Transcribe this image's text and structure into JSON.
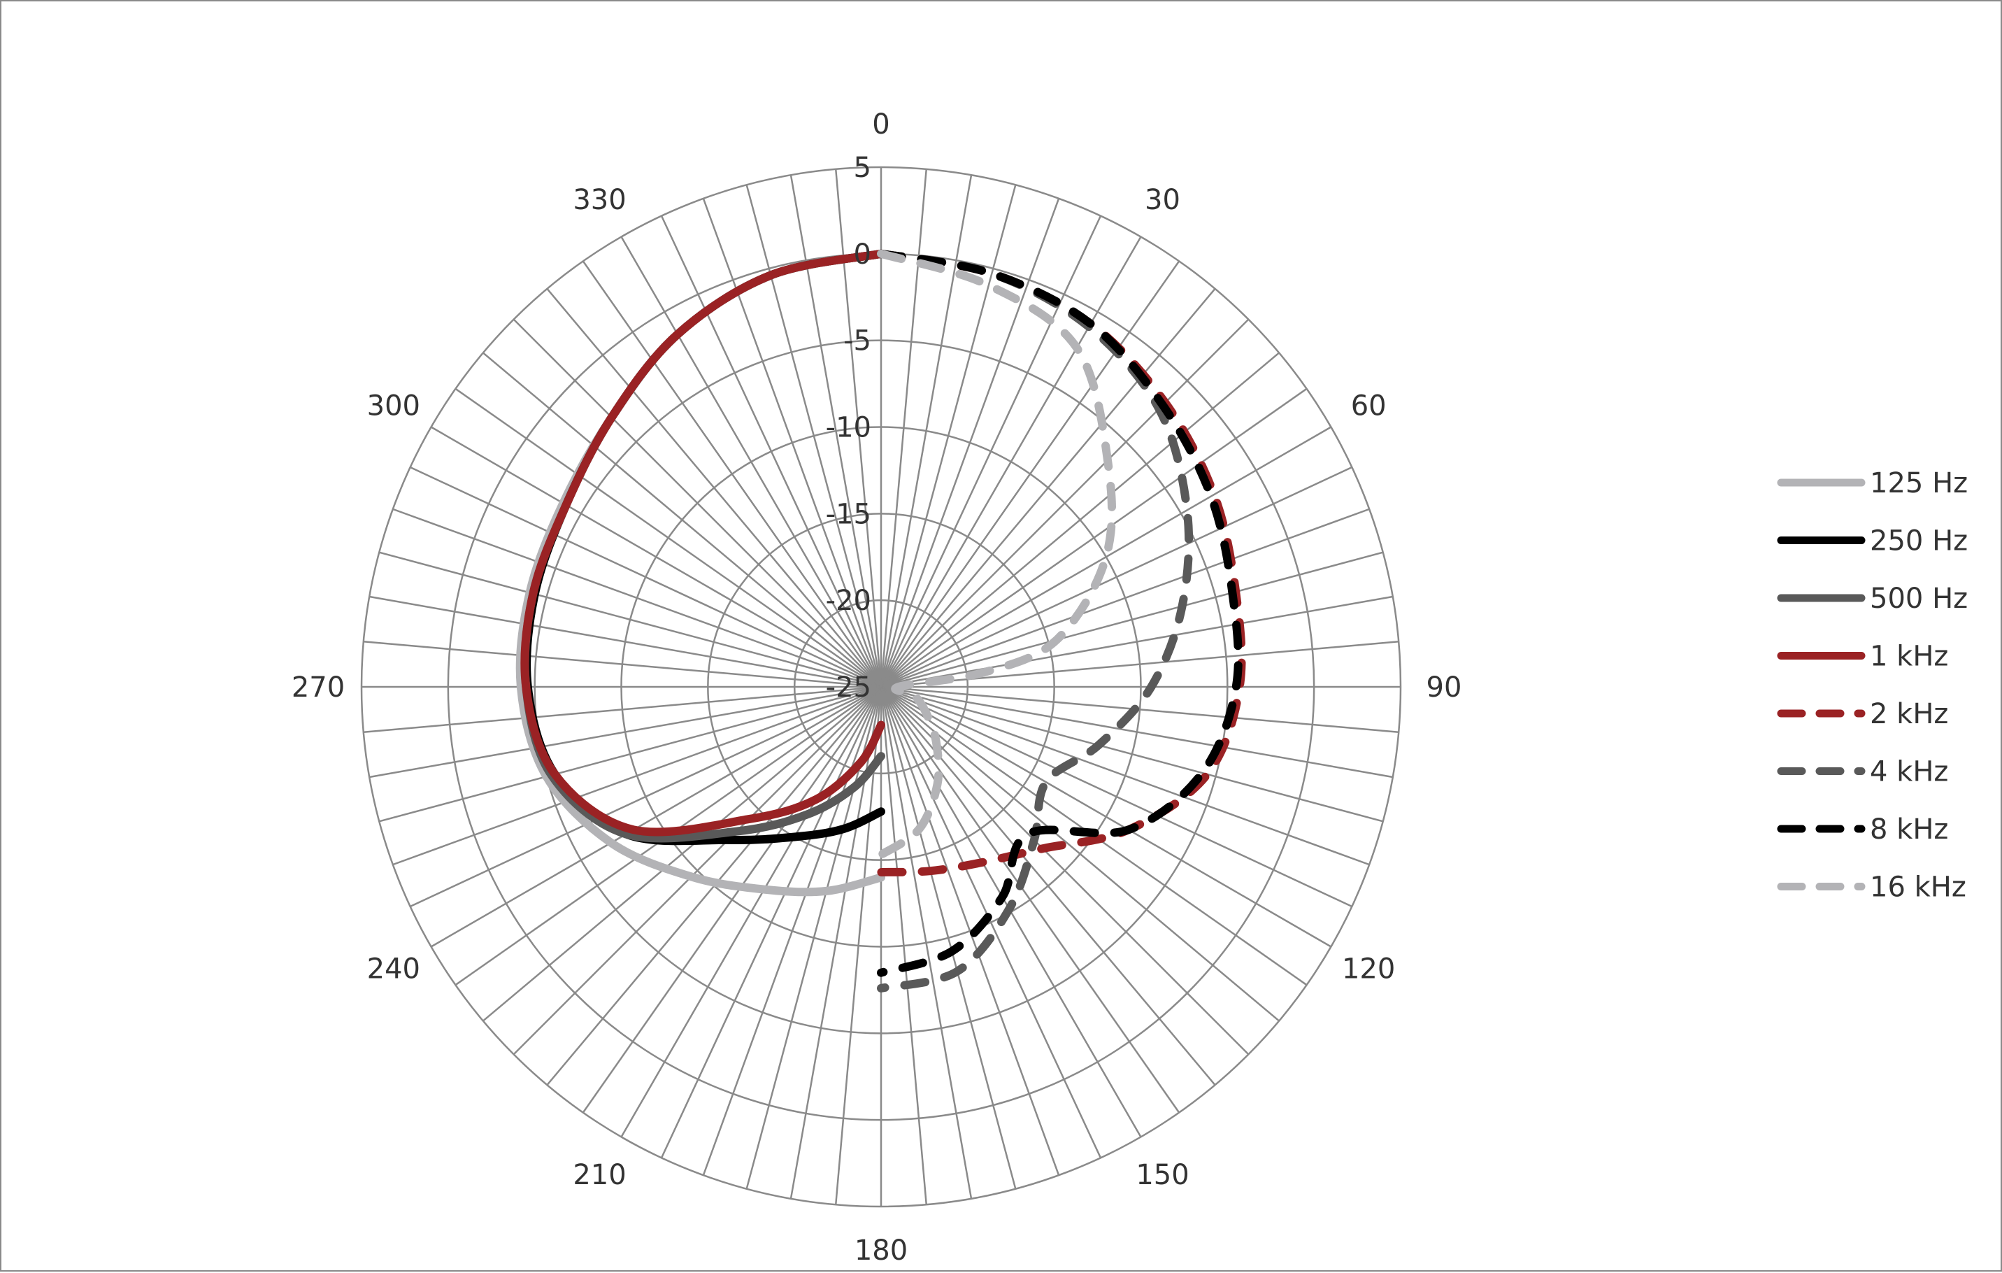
{
  "chart_data": {
    "type": "polar-line",
    "title": "",
    "radial_axis": {
      "range": [
        -25,
        5
      ],
      "ticks": [
        -25,
        -20,
        -15,
        -10,
        -5,
        0,
        5
      ],
      "tick_labels": [
        "-25",
        "-20",
        "-15",
        "-10",
        "-5",
        "0",
        "5"
      ]
    },
    "angular_axis": {
      "direction": "clockwise",
      "zero": "top",
      "spoke_step_deg": 5,
      "labels": [
        "0",
        "30",
        "60",
        "90",
        "120",
        "150",
        "180",
        "210",
        "240",
        "270",
        "300",
        "330"
      ]
    },
    "grid": true,
    "legend": {
      "position": "right"
    },
    "series": [
      {
        "name": "125 Hz",
        "color": "#b3b3b6",
        "dash": "solid",
        "angles": [
          180,
          195,
          210,
          225,
          240,
          255,
          270,
          285,
          300,
          315,
          330,
          345,
          360
        ],
        "values": [
          -14,
          -12.8,
          -11.5,
          -9.5,
          -7,
          -5,
          -4.2,
          -4,
          -3.8,
          -3,
          -1.5,
          -0.4,
          0
        ]
      },
      {
        "name": "250 Hz",
        "color": "#000000",
        "dash": "solid",
        "angles": [
          180,
          195,
          210,
          225,
          240,
          255,
          270,
          285,
          300,
          315,
          330,
          345,
          360
        ],
        "values": [
          -17.8,
          -16.5,
          -15,
          -12.5,
          -8,
          -5.5,
          -4.6,
          -4.3,
          -4,
          -3,
          -1.5,
          -0.4,
          0
        ]
      },
      {
        "name": "500 Hz",
        "color": "#595959",
        "dash": "solid",
        "angles": [
          180,
          195,
          210,
          225,
          240,
          255,
          270,
          285,
          300,
          315,
          330,
          345,
          360
        ],
        "values": [
          -21,
          -19,
          -16.5,
          -13.2,
          -8,
          -5.3,
          -4.5,
          -4.2,
          -4,
          -3,
          -1.5,
          -0.4,
          0
        ]
      },
      {
        "name": "1 kHz",
        "color": "#9a2224",
        "dash": "solid",
        "angles": [
          180,
          195,
          210,
          225,
          240,
          255,
          270,
          285,
          300,
          315,
          330,
          345,
          360
        ],
        "values": [
          -22.8,
          -20.5,
          -17.5,
          -14.2,
          -8.5,
          -5.5,
          -4.5,
          -4.2,
          -4,
          -3,
          -1.5,
          -0.4,
          0
        ]
      },
      {
        "name": "2 kHz",
        "color": "#9a2224",
        "dash": "dashed",
        "angles": [
          0,
          15,
          30,
          45,
          60,
          75,
          90,
          105,
          120,
          135,
          150,
          165,
          180
        ],
        "values": [
          0,
          -0.3,
          -0.8,
          -1.8,
          -2.8,
          -3.8,
          -4.3,
          -5.5,
          -8.5,
          -11.8,
          -13.3,
          -14,
          -14.3
        ]
      },
      {
        "name": "4 kHz",
        "color": "#595959",
        "dash": "dashed",
        "angles": [
          0,
          15,
          30,
          45,
          60,
          75,
          90,
          105,
          120,
          135,
          150,
          165,
          180
        ],
        "values": [
          0,
          -0.3,
          -1,
          -2.3,
          -4.6,
          -7,
          -9.4,
          -12,
          -14,
          -12.5,
          -10.2,
          -8,
          -7.6
        ]
      },
      {
        "name": "8 kHz",
        "color": "#000000",
        "dash": "dashed",
        "angles": [
          0,
          15,
          30,
          45,
          60,
          75,
          90,
          105,
          120,
          135,
          150,
          165,
          180
        ],
        "values": [
          0,
          -0.3,
          -0.8,
          -2,
          -3,
          -4,
          -4.5,
          -5.8,
          -8.5,
          -13,
          -11,
          -9.2,
          -8.5
        ]
      },
      {
        "name": "16 kHz",
        "color": "#b3b3b6",
        "dash": "dashed",
        "angles": [
          0,
          15,
          30,
          45,
          60,
          75,
          82,
          90,
          105,
          120,
          135,
          150,
          165,
          180
        ],
        "values": [
          0,
          -1,
          -2.4,
          -6.5,
          -10,
          -14.5,
          -19,
          -24,
          -23,
          -22,
          -20.5,
          -18.5,
          -16.5,
          -15.3
        ]
      }
    ]
  }
}
